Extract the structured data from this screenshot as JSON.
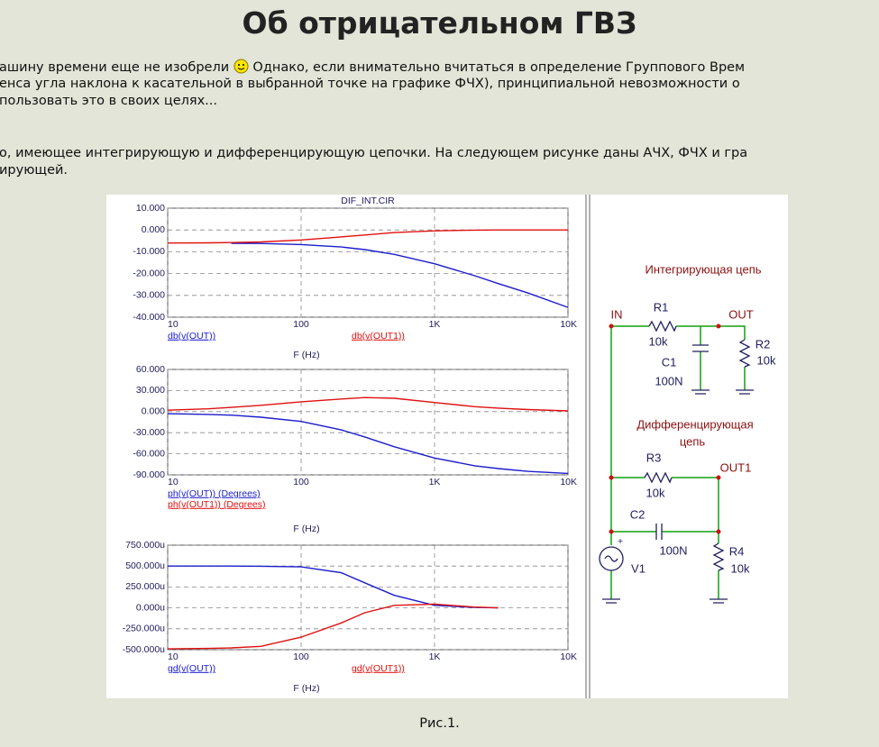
{
  "header": {
    "title": "Об отрицательном ГВЗ"
  },
  "text": {
    "line1_before": "ашину времени еще не изобрели",
    "line1_after": "Однако, если внимательно вчитаться в определение Группового Врем",
    "line2": "енса угла наклона к касательной в выбранной точке на графике ФЧХ), принципиальной невозможности о",
    "line3": "пользовать это в своих целях...",
    "line4": "о, имеющее интегрирующую и дифференцирующую цепочки. На следующем рисунке даны АЧХ, ФЧХ и гра",
    "line5": "ирующей."
  },
  "figure": {
    "chart_data": [
      {
        "type": "line",
        "title": "DIF_INT.CIR",
        "x_label": "F (Hz)",
        "xscale": "log",
        "grid": true,
        "x": [
          10,
          20,
          30,
          50,
          100,
          200,
          300,
          500,
          1000,
          2000,
          3000,
          5000,
          10000
        ],
        "xlim": [
          10,
          10000
        ],
        "xticks": [
          10,
          100,
          {
            "value": 1000,
            "label": "1K"
          },
          {
            "value": 10000,
            "label": "10K"
          }
        ],
        "ylim": [
          -40,
          10
        ],
        "yticks": [
          {
            "value": 10,
            "label": "10.000"
          },
          {
            "value": 0,
            "label": "0.000"
          },
          {
            "value": -10,
            "label": "-10.000"
          },
          {
            "value": -20,
            "label": "-20.000"
          },
          {
            "value": -30,
            "label": "-30.000"
          },
          {
            "value": -40,
            "label": "-40.000"
          }
        ],
        "series": [
          {
            "name": "db(v(OUT))",
            "color": "#1c1ccc",
            "values": [
              null,
              null,
              -6.1,
              -6.2,
              -6.7,
              -7.8,
              -9.0,
              -11.2,
              -15.5,
              -21,
              -24.6,
              -28.9,
              -35.5
            ]
          },
          {
            "name": "db(v(OUT1))",
            "color": "#e01010",
            "values": [
              -6,
              -5.9,
              -5.8,
              -5.5,
              -4.6,
              -3.2,
              -2.3,
              -1.2,
              -0.4,
              -0.1,
              0,
              0,
              0
            ]
          }
        ]
      },
      {
        "type": "line",
        "x_label": "F (Hz)",
        "xscale": "log",
        "grid": true,
        "x": [
          10,
          20,
          30,
          50,
          100,
          200,
          300,
          500,
          1000,
          2000,
          3000,
          5000,
          10000
        ],
        "xlim": [
          10,
          10000
        ],
        "xticks": [
          10,
          100,
          {
            "value": 1000,
            "label": "1K"
          },
          {
            "value": 10000,
            "label": "10K"
          }
        ],
        "ylim": [
          -90,
          60
        ],
        "yticks": [
          {
            "value": 60,
            "label": "60.000"
          },
          {
            "value": 30,
            "label": "30.000"
          },
          {
            "value": 0,
            "label": "0.000"
          },
          {
            "value": -30,
            "label": "-30.000"
          },
          {
            "value": -60,
            "label": "-60.000"
          },
          {
            "value": -90,
            "label": "-90.000"
          }
        ],
        "series": [
          {
            "name": "ph(v(OUT)) (Degrees)",
            "color": "#1c1ccc",
            "values": [
              -3,
              -4,
              -5,
              -8,
              -14,
              -26,
              -36,
              -50,
              -66,
              -77,
              -81,
              -85,
              -88
            ]
          },
          {
            "name": "ph(v(OUT1)) (Degrees)",
            "color": "#e01010",
            "values": [
              2,
              4,
              6,
              9,
              14,
              18,
              20,
              19,
              13,
              7,
              5,
              3,
              1
            ]
          }
        ]
      },
      {
        "type": "line",
        "x_label": "F (Hz)",
        "xscale": "log",
        "grid": true,
        "x": [
          10,
          20,
          30,
          50,
          100,
          200,
          300,
          500,
          1000,
          2000,
          3000
        ],
        "xlim": [
          10,
          10000
        ],
        "xticks": [
          10,
          100,
          {
            "value": 1000,
            "label": "1K"
          },
          {
            "value": 10000,
            "label": "10K"
          }
        ],
        "ylim": [
          -500,
          750
        ],
        "yticks": [
          {
            "value": 750,
            "label": "750.000u"
          },
          {
            "value": 500,
            "label": "500.000u"
          },
          {
            "value": 250,
            "label": "250.000u"
          },
          {
            "value": 0,
            "label": "0.000u"
          },
          {
            "value": -250,
            "label": "-250.000u"
          },
          {
            "value": -500,
            "label": "-500.000u"
          }
        ],
        "series": [
          {
            "name": "gd(v(OUT))",
            "color": "#1c1ccc",
            "values": [
              500,
              500,
              500,
              498,
              490,
              420,
              300,
              150,
              30,
              5,
              0
            ]
          },
          {
            "name": "gd(v(OUT1))",
            "color": "#e01010",
            "values": [
              -490,
              -485,
              -478,
              -460,
              -350,
              -180,
              -58,
              30,
              45,
              10,
              0
            ]
          }
        ]
      }
    ],
    "schematic": {
      "labels": [
        "Интегрирующая цепь",
        "IN",
        "R1",
        "10k",
        "OUT",
        "C1",
        "100N",
        "R2",
        "10k",
        "Дифференцирующая",
        "цепь",
        "R3",
        "10k",
        "OUT1",
        "C2",
        "100N",
        "R4",
        "10k",
        "V1"
      ]
    },
    "caption": "Рис.1."
  }
}
